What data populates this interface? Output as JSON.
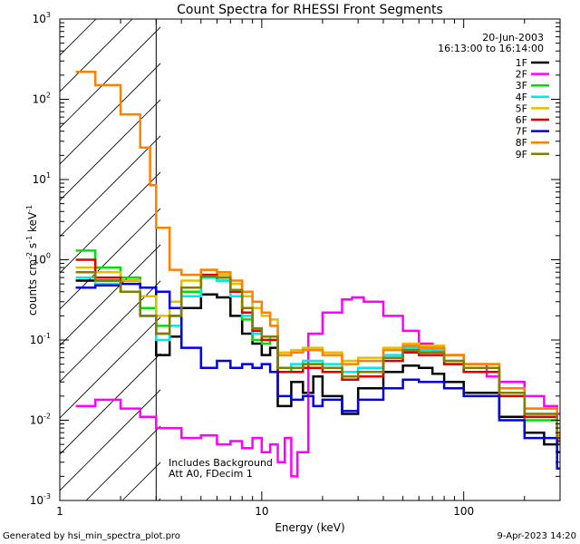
{
  "chart_data": {
    "type": "line",
    "title": "Count Spectra for RHESSI Front Segments",
    "xlabel": "Energy (keV)",
    "ylabel": "counts cm",
    "ylabel_tail": " keV",
    "ylabel_exp1": "-2",
    "ylabel_mid": " s",
    "ylabel_exp2": "-1",
    "ylabel_exp3": "-1",
    "xscale": "log",
    "yscale": "log",
    "xlim": [
      1,
      300
    ],
    "ylim": [
      0.001,
      1000
    ],
    "x_ticks": [
      {
        "value": 1,
        "label": "1"
      },
      {
        "value": 10,
        "label": "10"
      },
      {
        "value": 100,
        "label": "100"
      }
    ],
    "y_ticks": [
      {
        "value": 0.001,
        "base": "10",
        "exp": "-3"
      },
      {
        "value": 0.01,
        "base": "10",
        "exp": "-2"
      },
      {
        "value": 0.1,
        "base": "10",
        "exp": "-1"
      },
      {
        "value": 1,
        "base": "10",
        "exp": "0"
      },
      {
        "value": 10,
        "base": "10",
        "exp": "1"
      },
      {
        "value": 100,
        "base": "10",
        "exp": "2"
      },
      {
        "value": 1000,
        "base": "10",
        "exp": "3"
      }
    ],
    "date": "20-Jun-2003",
    "time_range": "16:13:00 to 16:14:00",
    "excluded_region": {
      "x_max": 3,
      "pattern": "hatched"
    },
    "annotations": [
      "Includes Background",
      "Att A0, FDecim 1"
    ],
    "series": [
      {
        "name": "1F",
        "color": "#000000",
        "points": [
          [
            1.2,
            0.55
          ],
          [
            1.5,
            0.55
          ],
          [
            2,
            0.55
          ],
          [
            2.5,
            0.45
          ],
          [
            3,
            0.065
          ],
          [
            3.5,
            0.11
          ],
          [
            4,
            0.25
          ],
          [
            5,
            0.37
          ],
          [
            6,
            0.34
          ],
          [
            7,
            0.2
          ],
          [
            8,
            0.12
          ],
          [
            9,
            0.09
          ],
          [
            10,
            0.065
          ],
          [
            11,
            0.08
          ],
          [
            12,
            0.015
          ],
          [
            14,
            0.03
          ],
          [
            16,
            0.022
          ],
          [
            18,
            0.035
          ],
          [
            20,
            0.02
          ],
          [
            25,
            0.012
          ],
          [
            30,
            0.025
          ],
          [
            40,
            0.04
          ],
          [
            50,
            0.048
          ],
          [
            60,
            0.045
          ],
          [
            70,
            0.038
          ],
          [
            80,
            0.03
          ],
          [
            100,
            0.022
          ],
          [
            150,
            0.011
          ],
          [
            200,
            0.007
          ],
          [
            250,
            0.005
          ],
          [
            290,
            0.004
          ]
        ]
      },
      {
        "name": "2F",
        "color": "#ff00ff",
        "points": [
          [
            1.2,
            0.015
          ],
          [
            1.5,
            0.018
          ],
          [
            2,
            0.014
          ],
          [
            2.5,
            0.011
          ],
          [
            3,
            0.008
          ],
          [
            4,
            0.006
          ],
          [
            5,
            0.0065
          ],
          [
            6,
            0.005
          ],
          [
            7,
            0.0055
          ],
          [
            8,
            0.0045
          ],
          [
            9,
            0.006
          ],
          [
            10,
            0.004
          ],
          [
            11,
            0.005
          ],
          [
            12,
            0.003
          ],
          [
            13,
            0.006
          ],
          [
            14,
            0.002
          ],
          [
            15,
            0.004
          ],
          [
            17,
            0.12
          ],
          [
            20,
            0.22
          ],
          [
            25,
            0.32
          ],
          [
            28,
            0.34
          ],
          [
            32,
            0.3
          ],
          [
            40,
            0.2
          ],
          [
            50,
            0.13
          ],
          [
            60,
            0.09
          ],
          [
            70,
            0.075
          ],
          [
            80,
            0.065
          ],
          [
            100,
            0.05
          ],
          [
            130,
            0.035
          ],
          [
            150,
            0.03
          ],
          [
            200,
            0.02
          ],
          [
            250,
            0.015
          ],
          [
            290,
            0.012
          ]
        ]
      },
      {
        "name": "3F",
        "color": "#00e000",
        "points": [
          [
            1.2,
            1.3
          ],
          [
            1.5,
            0.8
          ],
          [
            2,
            0.6
          ],
          [
            2.5,
            0.25
          ],
          [
            3,
            0.15
          ],
          [
            3.5,
            0.2
          ],
          [
            4,
            0.4
          ],
          [
            5,
            0.6
          ],
          [
            6,
            0.55
          ],
          [
            7,
            0.35
          ],
          [
            8,
            0.18
          ],
          [
            9,
            0.1
          ],
          [
            10,
            0.09
          ],
          [
            11,
            0.1
          ],
          [
            12,
            0.04
          ],
          [
            14,
            0.045
          ],
          [
            16,
            0.05
          ],
          [
            20,
            0.045
          ],
          [
            25,
            0.035
          ],
          [
            30,
            0.04
          ],
          [
            40,
            0.06
          ],
          [
            50,
            0.075
          ],
          [
            60,
            0.07
          ],
          [
            80,
            0.05
          ],
          [
            100,
            0.04
          ],
          [
            150,
            0.02
          ],
          [
            200,
            0.01
          ],
          [
            290,
            0.005
          ]
        ]
      },
      {
        "name": "4F",
        "color": "#00e8e8",
        "points": [
          [
            1.2,
            0.6
          ],
          [
            1.5,
            0.5
          ],
          [
            2,
            0.4
          ],
          [
            2.5,
            0.2
          ],
          [
            3,
            0.1
          ],
          [
            3.5,
            0.15
          ],
          [
            4,
            0.35
          ],
          [
            5,
            0.6
          ],
          [
            6,
            0.55
          ],
          [
            7,
            0.35
          ],
          [
            8,
            0.2
          ],
          [
            9,
            0.12
          ],
          [
            10,
            0.1
          ],
          [
            11,
            0.11
          ],
          [
            12,
            0.045
          ],
          [
            14,
            0.05
          ],
          [
            16,
            0.055
          ],
          [
            20,
            0.05
          ],
          [
            25,
            0.04
          ],
          [
            30,
            0.045
          ],
          [
            40,
            0.065
          ],
          [
            50,
            0.08
          ],
          [
            60,
            0.075
          ],
          [
            80,
            0.055
          ],
          [
            100,
            0.045
          ],
          [
            150,
            0.022
          ],
          [
            200,
            0.012
          ],
          [
            290,
            0.006
          ]
        ]
      },
      {
        "name": "5F",
        "color": "#e0c000",
        "points": [
          [
            1.2,
            0.8
          ],
          [
            1.5,
            0.7
          ],
          [
            2,
            0.55
          ],
          [
            2.5,
            0.35
          ],
          [
            3,
            0.2
          ],
          [
            3.5,
            0.3
          ],
          [
            4,
            0.55
          ],
          [
            5,
            0.75
          ],
          [
            6,
            0.65
          ],
          [
            7,
            0.5
          ],
          [
            8,
            0.35
          ],
          [
            9,
            0.25
          ],
          [
            10,
            0.2
          ],
          [
            11,
            0.18
          ],
          [
            12,
            0.07
          ],
          [
            14,
            0.075
          ],
          [
            16,
            0.08
          ],
          [
            20,
            0.07
          ],
          [
            25,
            0.055
          ],
          [
            30,
            0.06
          ],
          [
            40,
            0.08
          ],
          [
            50,
            0.09
          ],
          [
            60,
            0.085
          ],
          [
            80,
            0.065
          ],
          [
            100,
            0.05
          ],
          [
            150,
            0.025
          ],
          [
            200,
            0.014
          ],
          [
            290,
            0.007
          ]
        ]
      },
      {
        "name": "6F",
        "color": "#e00000",
        "points": [
          [
            1.2,
            1.0
          ],
          [
            1.5,
            0.6
          ],
          [
            2,
            0.4
          ],
          [
            2.5,
            0.2
          ],
          [
            3,
            0.12
          ],
          [
            3.5,
            0.2
          ],
          [
            4,
            0.45
          ],
          [
            5,
            0.65
          ],
          [
            6,
            0.6
          ],
          [
            7,
            0.4
          ],
          [
            8,
            0.22
          ],
          [
            9,
            0.13
          ],
          [
            10,
            0.1
          ],
          [
            11,
            0.1
          ],
          [
            12,
            0.04
          ],
          [
            14,
            0.04
          ],
          [
            16,
            0.045
          ],
          [
            20,
            0.04
          ],
          [
            25,
            0.032
          ],
          [
            30,
            0.035
          ],
          [
            40,
            0.055
          ],
          [
            50,
            0.07
          ],
          [
            60,
            0.065
          ],
          [
            80,
            0.05
          ],
          [
            100,
            0.04
          ],
          [
            150,
            0.02
          ],
          [
            200,
            0.011
          ],
          [
            290,
            0.0055
          ]
        ]
      },
      {
        "name": "7F",
        "color": "#0000e0",
        "points": [
          [
            1.2,
            0.45
          ],
          [
            1.5,
            0.48
          ],
          [
            2,
            0.5
          ],
          [
            2.5,
            0.45
          ],
          [
            3,
            0.4
          ],
          [
            3.5,
            0.25
          ],
          [
            4,
            0.08
          ],
          [
            5,
            0.045
          ],
          [
            6,
            0.055
          ],
          [
            7,
            0.045
          ],
          [
            8,
            0.05
          ],
          [
            9,
            0.045
          ],
          [
            10,
            0.05
          ],
          [
            11,
            0.04
          ],
          [
            12,
            0.02
          ],
          [
            14,
            0.018
          ],
          [
            16,
            0.02
          ],
          [
            18,
            0.015
          ],
          [
            20,
            0.018
          ],
          [
            25,
            0.013
          ],
          [
            30,
            0.018
          ],
          [
            40,
            0.025
          ],
          [
            50,
            0.032
          ],
          [
            60,
            0.03
          ],
          [
            80,
            0.025
          ],
          [
            100,
            0.02
          ],
          [
            150,
            0.01
          ],
          [
            200,
            0.006
          ],
          [
            290,
            0.0025
          ]
        ]
      },
      {
        "name": "8F",
        "color": "#ff8000",
        "points": [
          [
            1.2,
            220
          ],
          [
            1.5,
            150
          ],
          [
            2,
            65
          ],
          [
            2.5,
            25
          ],
          [
            2.8,
            8.5
          ],
          [
            3,
            2.5
          ],
          [
            3.5,
            0.75
          ],
          [
            4,
            0.65
          ],
          [
            5,
            0.75
          ],
          [
            6,
            0.7
          ],
          [
            7,
            0.55
          ],
          [
            8,
            0.4
          ],
          [
            9,
            0.3
          ],
          [
            10,
            0.22
          ],
          [
            11,
            0.15
          ],
          [
            12,
            0.065
          ],
          [
            14,
            0.07
          ],
          [
            16,
            0.075
          ],
          [
            20,
            0.065
          ],
          [
            25,
            0.05
          ],
          [
            30,
            0.055
          ],
          [
            40,
            0.075
          ],
          [
            50,
            0.085
          ],
          [
            60,
            0.08
          ],
          [
            80,
            0.065
          ],
          [
            100,
            0.05
          ],
          [
            150,
            0.025
          ],
          [
            200,
            0.014
          ],
          [
            290,
            0.0065
          ]
        ]
      },
      {
        "name": "9F",
        "color": "#808000",
        "points": [
          [
            1.2,
            0.7
          ],
          [
            1.5,
            0.55
          ],
          [
            2,
            0.4
          ],
          [
            2.5,
            0.2
          ],
          [
            3,
            0.12
          ],
          [
            3.5,
            0.2
          ],
          [
            4,
            0.45
          ],
          [
            5,
            0.62
          ],
          [
            6,
            0.6
          ],
          [
            7,
            0.42
          ],
          [
            8,
            0.25
          ],
          [
            9,
            0.14
          ],
          [
            10,
            0.11
          ],
          [
            11,
            0.11
          ],
          [
            12,
            0.045
          ],
          [
            14,
            0.045
          ],
          [
            16,
            0.05
          ],
          [
            20,
            0.045
          ],
          [
            25,
            0.035
          ],
          [
            30,
            0.04
          ],
          [
            40,
            0.06
          ],
          [
            50,
            0.075
          ],
          [
            60,
            0.07
          ],
          [
            80,
            0.055
          ],
          [
            100,
            0.045
          ],
          [
            150,
            0.022
          ],
          [
            200,
            0.012
          ],
          [
            290,
            0.006
          ]
        ]
      }
    ]
  },
  "footer": {
    "left": "Generated by hsi_min_spectra_plot.pro",
    "right": "9-Apr-2023 14:20"
  }
}
